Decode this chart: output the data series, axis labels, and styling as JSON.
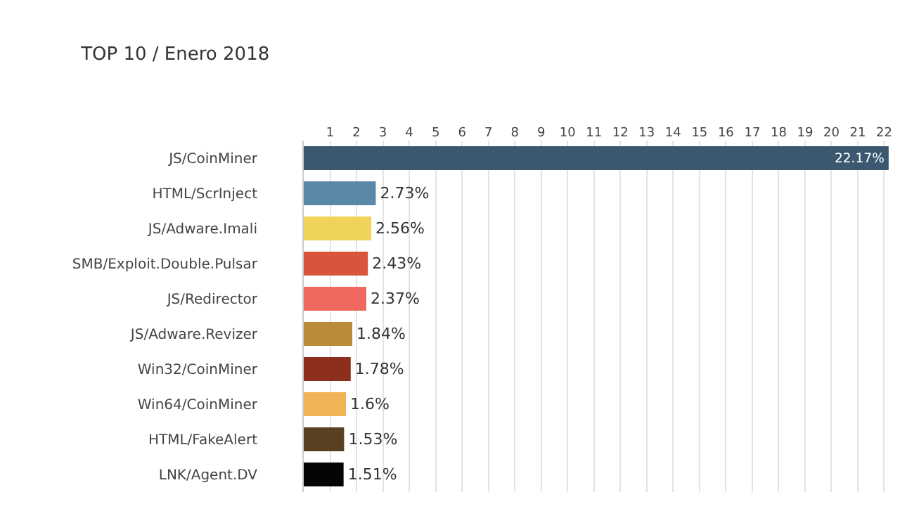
{
  "chart_data": {
    "type": "bar",
    "orientation": "horizontal",
    "title": "TOP 10 / Enero 2018",
    "categories": [
      "JS/CoinMiner",
      "HTML/ScrInject",
      "JS/Adware.Imali",
      "SMB/Exploit.Double.Pulsar",
      "JS/Redirector",
      "JS/Adware.Revizer",
      "Win32/CoinMiner",
      "Win64/CoinMiner",
      "HTML/FakeAlert",
      "LNK/Agent.DV"
    ],
    "values": [
      22.17,
      2.73,
      2.56,
      2.43,
      2.37,
      1.84,
      1.78,
      1.6,
      1.53,
      1.51
    ],
    "value_labels": [
      "22.17%",
      "2.73%",
      "2.56%",
      "2.43%",
      "2.37%",
      "1.84%",
      "1.78%",
      "1.6%",
      "1.53%",
      "1.51%"
    ],
    "colors": [
      "#3b5870",
      "#5b87a8",
      "#efd35a",
      "#d9543a",
      "#f0675f",
      "#bb8b3c",
      "#8e2e1c",
      "#f0b456",
      "#5a4022",
      "#050505"
    ],
    "xlim": [
      0,
      22.6
    ],
    "xticks": [
      1,
      2,
      3,
      4,
      5,
      6,
      7,
      8,
      9,
      10,
      11,
      12,
      13,
      14,
      15,
      16,
      17,
      18,
      19,
      20,
      21,
      22
    ],
    "grid": "x"
  }
}
